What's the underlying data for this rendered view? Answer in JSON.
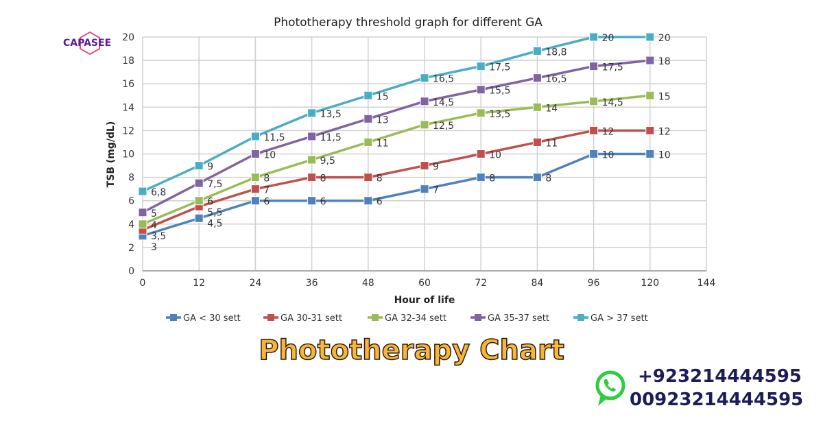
{
  "brand": {
    "logo_text": "CAPASEE",
    "banner": "Phototherapy Chart",
    "phones": [
      "+923214444595",
      "00923214444595"
    ],
    "whatsapp_icon": "whatsapp-icon",
    "colors": {
      "banner": "#f7b53a",
      "phone": "#1c1c5a",
      "logo": "#5a1a9a",
      "whatsapp": "#2ecc40"
    }
  },
  "chart_data": {
    "type": "line",
    "title": "Phototherapy threshold graph for different GA",
    "xlabel": "Hour of life",
    "ylabel": "TSB (mg/dL)",
    "x": [
      0,
      12,
      24,
      36,
      48,
      60,
      72,
      84,
      96,
      120
    ],
    "x_tick_labels": [
      "0",
      "12",
      "24",
      "36",
      "48",
      "60",
      "72",
      "84",
      "96",
      "120",
      "144"
    ],
    "y_tick_labels": [
      "0",
      "2",
      "4",
      "6",
      "8",
      "10",
      "12",
      "14",
      "16",
      "18",
      "20"
    ],
    "ylim": [
      0,
      20
    ],
    "grid": true,
    "legend": "bottom",
    "series": [
      {
        "name": "GA < 30 sett",
        "color": "#4f81bd",
        "values": [
          3,
          4.5,
          6,
          6,
          6,
          7,
          8,
          8,
          10,
          10
        ],
        "labels": [
          "3",
          "4,5",
          "6",
          "6",
          "6",
          "7",
          "8",
          "8",
          "10",
          "10"
        ]
      },
      {
        "name": "GA 30-31 sett",
        "color": "#c0504d",
        "values": [
          3.5,
          5.5,
          7,
          8,
          8,
          9,
          10,
          11,
          12,
          12
        ],
        "labels": [
          "3,5",
          "5,5",
          "7",
          "8",
          "8",
          "9",
          "10",
          "11",
          "12",
          "12"
        ]
      },
      {
        "name": "GA 32-34 sett",
        "color": "#9bbb59",
        "values": [
          4,
          6,
          8,
          9.5,
          11,
          12.5,
          13.5,
          14,
          14.5,
          15
        ],
        "labels": [
          "4",
          "6",
          "8",
          "9,5",
          "11",
          "12,5",
          "13,5",
          "14",
          "14,5",
          "15"
        ]
      },
      {
        "name": "GA 35-37 sett",
        "color": "#8064a2",
        "values": [
          5,
          7.5,
          10,
          11.5,
          13,
          14.5,
          15.5,
          16.5,
          17.5,
          18
        ],
        "labels": [
          "5",
          "7,5",
          "10",
          "11,5",
          "13",
          "14,5",
          "15,5",
          "16,5",
          "17,5",
          "18"
        ]
      },
      {
        "name": "GA > 37 sett",
        "color": "#4bacc6",
        "values": [
          6.8,
          9,
          11.5,
          13.5,
          15,
          16.5,
          17.5,
          18.8,
          20,
          20
        ],
        "labels": [
          "6,8",
          "9",
          "11,5",
          "13,5",
          "15",
          "16,5",
          "17,5",
          "18,8",
          "20",
          "20"
        ]
      }
    ]
  }
}
